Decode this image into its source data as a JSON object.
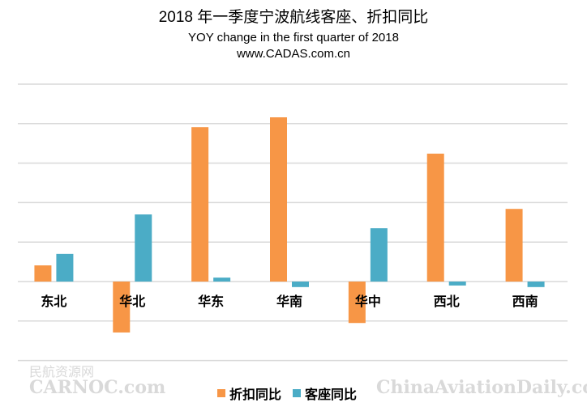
{
  "chart_data": {
    "type": "bar",
    "title": "2018 年一季度宁波航线客座、折扣同比",
    "subtitle": "YOY change in the first quarter of 2018",
    "source": "www.CADAS.com.cn",
    "categories": [
      "东北",
      "华北",
      "华东",
      "华南",
      "华中",
      "西北",
      "西南"
    ],
    "series": [
      {
        "name": "折扣同比",
        "color": "#F79646",
        "values": [
          0.41,
          -1.29,
          3.91,
          4.16,
          -1.05,
          3.24,
          1.84
        ]
      },
      {
        "name": "客座同比",
        "color": "#4BACC6",
        "values": [
          0.7,
          1.7,
          0.1,
          -0.14,
          1.35,
          -0.1,
          -0.14
        ]
      }
    ],
    "ylim": [
      -2,
      5
    ],
    "gridlines": true,
    "y_tick_labels_shown": false,
    "legend_position": "bottom"
  },
  "watermarks": {
    "left_cn": "民航资源网",
    "left_en": "CARNOC.com",
    "right": "ChinaAviationDaily.com"
  }
}
